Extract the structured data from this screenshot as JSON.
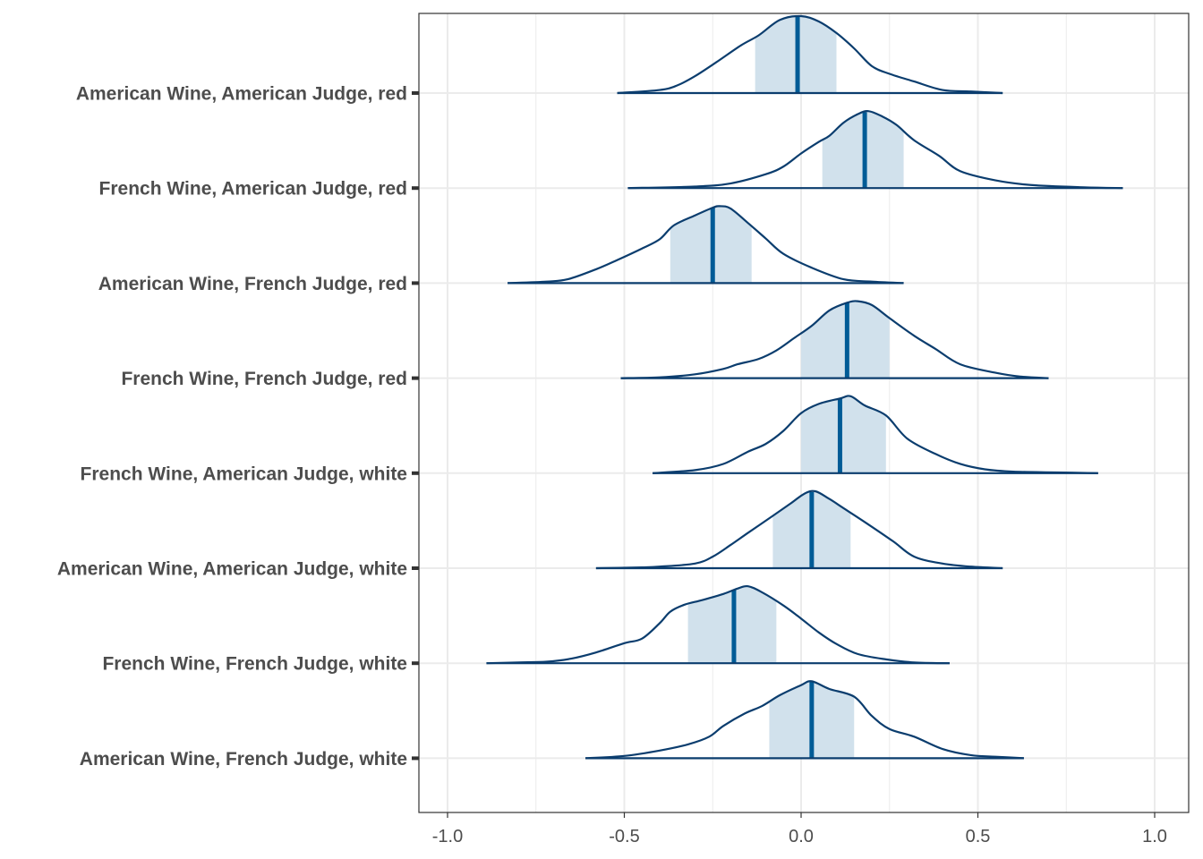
{
  "chart_data": {
    "type": "ridgeline",
    "title": "",
    "xlabel": "",
    "ylabel": "",
    "xlim": [
      -1.08,
      1.1
    ],
    "x_ticks": [
      -1.0,
      -0.5,
      0.0,
      0.5,
      1.0
    ],
    "x_tick_labels": [
      "-1.0",
      "-0.5",
      "0.0",
      "0.5",
      "1.0"
    ],
    "grid": true,
    "colors": {
      "line": "#0b3d6e",
      "median": "#005b96",
      "interval_fill": "#d1e1ec",
      "grid": "#ebebeb",
      "panel_border": "#333333"
    },
    "series": [
      {
        "label": "American Wine, American Judge, red",
        "median": -0.01,
        "interval": [
          -0.13,
          0.1
        ],
        "range": [
          -0.52,
          0.57
        ],
        "density": [
          [
            -0.52,
            0.0
          ],
          [
            -0.4,
            0.04
          ],
          [
            -0.35,
            0.1
          ],
          [
            -0.3,
            0.22
          ],
          [
            -0.24,
            0.4
          ],
          [
            -0.17,
            0.62
          ],
          [
            -0.12,
            0.75
          ],
          [
            -0.06,
            0.95
          ],
          [
            0.0,
            1.0
          ],
          [
            0.05,
            0.93
          ],
          [
            0.1,
            0.78
          ],
          [
            0.15,
            0.58
          ],
          [
            0.2,
            0.35
          ],
          [
            0.25,
            0.25
          ],
          [
            0.32,
            0.15
          ],
          [
            0.4,
            0.04
          ],
          [
            0.48,
            0.02
          ],
          [
            0.57,
            0.0
          ]
        ]
      },
      {
        "label": "French Wine, American Judge, red",
        "median": 0.18,
        "interval": [
          0.06,
          0.29
        ],
        "range": [
          -0.49,
          0.91
        ],
        "density": [
          [
            -0.49,
            0.0
          ],
          [
            -0.3,
            0.02
          ],
          [
            -0.2,
            0.06
          ],
          [
            -0.1,
            0.18
          ],
          [
            -0.05,
            0.28
          ],
          [
            0.0,
            0.45
          ],
          [
            0.05,
            0.6
          ],
          [
            0.08,
            0.68
          ],
          [
            0.12,
            0.85
          ],
          [
            0.16,
            0.96
          ],
          [
            0.19,
            1.0
          ],
          [
            0.23,
            0.93
          ],
          [
            0.27,
            0.82
          ],
          [
            0.32,
            0.62
          ],
          [
            0.39,
            0.42
          ],
          [
            0.45,
            0.22
          ],
          [
            0.55,
            0.1
          ],
          [
            0.65,
            0.04
          ],
          [
            0.8,
            0.01
          ],
          [
            0.91,
            0.0
          ]
        ]
      },
      {
        "label": "American Wine, French Judge, red",
        "median": -0.25,
        "interval": [
          -0.37,
          -0.14
        ],
        "range": [
          -0.83,
          0.29
        ],
        "density": [
          [
            -0.83,
            0.0
          ],
          [
            -0.72,
            0.02
          ],
          [
            -0.66,
            0.05
          ],
          [
            -0.58,
            0.18
          ],
          [
            -0.52,
            0.3
          ],
          [
            -0.45,
            0.45
          ],
          [
            -0.4,
            0.57
          ],
          [
            -0.36,
            0.75
          ],
          [
            -0.3,
            0.88
          ],
          [
            -0.25,
            0.98
          ],
          [
            -0.23,
            1.0
          ],
          [
            -0.2,
            0.97
          ],
          [
            -0.15,
            0.78
          ],
          [
            -0.1,
            0.58
          ],
          [
            -0.05,
            0.38
          ],
          [
            0.03,
            0.2
          ],
          [
            0.12,
            0.05
          ],
          [
            0.2,
            0.02
          ],
          [
            0.29,
            0.0
          ]
        ]
      },
      {
        "label": "French Wine, French Judge, red",
        "median": 0.13,
        "interval": [
          0.0,
          0.25
        ],
        "range": [
          -0.51,
          0.7
        ],
        "density": [
          [
            -0.51,
            0.0
          ],
          [
            -0.4,
            0.01
          ],
          [
            -0.3,
            0.05
          ],
          [
            -0.22,
            0.12
          ],
          [
            -0.18,
            0.18
          ],
          [
            -0.12,
            0.25
          ],
          [
            -0.07,
            0.36
          ],
          [
            -0.02,
            0.52
          ],
          [
            0.03,
            0.68
          ],
          [
            0.08,
            0.88
          ],
          [
            0.13,
            0.98
          ],
          [
            0.16,
            1.0
          ],
          [
            0.2,
            0.95
          ],
          [
            0.25,
            0.78
          ],
          [
            0.32,
            0.55
          ],
          [
            0.38,
            0.38
          ],
          [
            0.45,
            0.18
          ],
          [
            0.55,
            0.07
          ],
          [
            0.62,
            0.02
          ],
          [
            0.7,
            0.0
          ]
        ]
      },
      {
        "label": "French Wine, American Judge, white",
        "median": 0.11,
        "interval": [
          0.0,
          0.24
        ],
        "range": [
          -0.42,
          0.84
        ],
        "density": [
          [
            -0.42,
            0.0
          ],
          [
            -0.3,
            0.04
          ],
          [
            -0.22,
            0.12
          ],
          [
            -0.15,
            0.28
          ],
          [
            -0.1,
            0.38
          ],
          [
            -0.05,
            0.55
          ],
          [
            0.0,
            0.78
          ],
          [
            0.05,
            0.9
          ],
          [
            0.11,
            0.97
          ],
          [
            0.14,
            1.0
          ],
          [
            0.18,
            0.88
          ],
          [
            0.24,
            0.75
          ],
          [
            0.3,
            0.45
          ],
          [
            0.38,
            0.25
          ],
          [
            0.45,
            0.12
          ],
          [
            0.52,
            0.05
          ],
          [
            0.6,
            0.02
          ],
          [
            0.72,
            0.01
          ],
          [
            0.84,
            0.0
          ]
        ]
      },
      {
        "label": "American Wine, American Judge, white",
        "median": 0.03,
        "interval": [
          -0.08,
          0.14
        ],
        "range": [
          -0.58,
          0.57
        ],
        "density": [
          [
            -0.58,
            0.0
          ],
          [
            -0.45,
            0.01
          ],
          [
            -0.4,
            0.02
          ],
          [
            -0.3,
            0.06
          ],
          [
            -0.25,
            0.15
          ],
          [
            -0.2,
            0.3
          ],
          [
            -0.15,
            0.46
          ],
          [
            -0.08,
            0.68
          ],
          [
            -0.03,
            0.84
          ],
          [
            0.01,
            0.97
          ],
          [
            0.04,
            1.0
          ],
          [
            0.08,
            0.9
          ],
          [
            0.12,
            0.78
          ],
          [
            0.18,
            0.6
          ],
          [
            0.26,
            0.35
          ],
          [
            0.32,
            0.15
          ],
          [
            0.4,
            0.06
          ],
          [
            0.48,
            0.02
          ],
          [
            0.57,
            0.0
          ]
        ]
      },
      {
        "label": "French Wine, French Judge, white",
        "median": -0.19,
        "interval": [
          -0.32,
          -0.07
        ],
        "range": [
          -0.89,
          0.42
        ],
        "density": [
          [
            -0.89,
            0.0
          ],
          [
            -0.8,
            0.01
          ],
          [
            -0.72,
            0.02
          ],
          [
            -0.65,
            0.06
          ],
          [
            -0.58,
            0.14
          ],
          [
            -0.5,
            0.26
          ],
          [
            -0.45,
            0.32
          ],
          [
            -0.4,
            0.52
          ],
          [
            -0.37,
            0.67
          ],
          [
            -0.33,
            0.76
          ],
          [
            -0.28,
            0.82
          ],
          [
            -0.22,
            0.9
          ],
          [
            -0.18,
            0.97
          ],
          [
            -0.15,
            1.0
          ],
          [
            -0.11,
            0.92
          ],
          [
            -0.05,
            0.75
          ],
          [
            0.0,
            0.58
          ],
          [
            0.05,
            0.4
          ],
          [
            0.1,
            0.25
          ],
          [
            0.16,
            0.12
          ],
          [
            0.24,
            0.05
          ],
          [
            0.32,
            0.01
          ],
          [
            0.42,
            0.0
          ]
        ]
      },
      {
        "label": "American Wine, French Judge, white",
        "median": 0.03,
        "interval": [
          -0.09,
          0.15
        ],
        "range": [
          -0.61,
          0.63
        ],
        "density": [
          [
            -0.61,
            0.0
          ],
          [
            -0.5,
            0.03
          ],
          [
            -0.4,
            0.1
          ],
          [
            -0.32,
            0.18
          ],
          [
            -0.26,
            0.28
          ],
          [
            -0.22,
            0.42
          ],
          [
            -0.16,
            0.58
          ],
          [
            -0.11,
            0.68
          ],
          [
            -0.06,
            0.82
          ],
          [
            0.0,
            0.95
          ],
          [
            0.03,
            1.0
          ],
          [
            0.08,
            0.9
          ],
          [
            0.15,
            0.8
          ],
          [
            0.2,
            0.55
          ],
          [
            0.25,
            0.38
          ],
          [
            0.32,
            0.28
          ],
          [
            0.4,
            0.12
          ],
          [
            0.48,
            0.04
          ],
          [
            0.55,
            0.02
          ],
          [
            0.63,
            0.0
          ]
        ]
      }
    ]
  }
}
